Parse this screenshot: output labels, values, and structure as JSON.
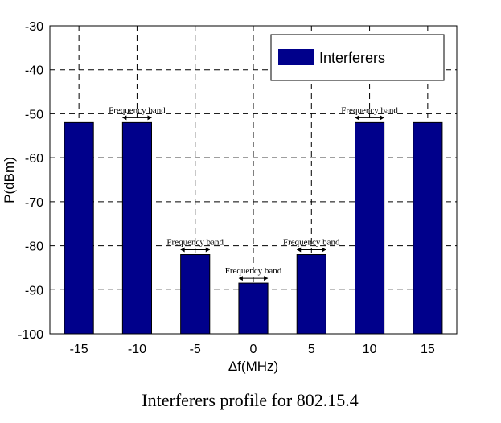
{
  "chart_data": {
    "type": "bar",
    "title": "",
    "caption": "Interferers profile for 802.15.4",
    "xlabel": "Δf(MHz)",
    "ylabel": "P(dBm)",
    "categories": [
      -15,
      -10,
      -5,
      0,
      5,
      10,
      15
    ],
    "series": [
      {
        "name": "Interferers",
        "values": [
          -52,
          -52,
          -82,
          -88.5,
          -82,
          -52,
          -52
        ],
        "color": "#00008B"
      }
    ],
    "xlim": [
      -17.5,
      17.5
    ],
    "ylim": [
      -100,
      -30
    ],
    "bar_width": 2.5,
    "xticks": [
      "-15",
      "-10",
      "-5",
      "0",
      "5",
      "10",
      "15"
    ],
    "yticks": [
      "-30",
      "-40",
      "-50",
      "-60",
      "-70",
      "-80",
      "-90",
      "-100"
    ],
    "grid": true,
    "legend_position": "top-right",
    "annotations": [
      {
        "text": "Frequency band",
        "x": -10,
        "y": -52
      },
      {
        "text": "Frequency band",
        "x": -5,
        "y": -82
      },
      {
        "text": "Frequency band",
        "x": 0,
        "y": -88.5
      },
      {
        "text": "Frequency band",
        "x": 5,
        "y": -82
      },
      {
        "text": "Frequency band",
        "x": 10,
        "y": -52
      }
    ]
  }
}
